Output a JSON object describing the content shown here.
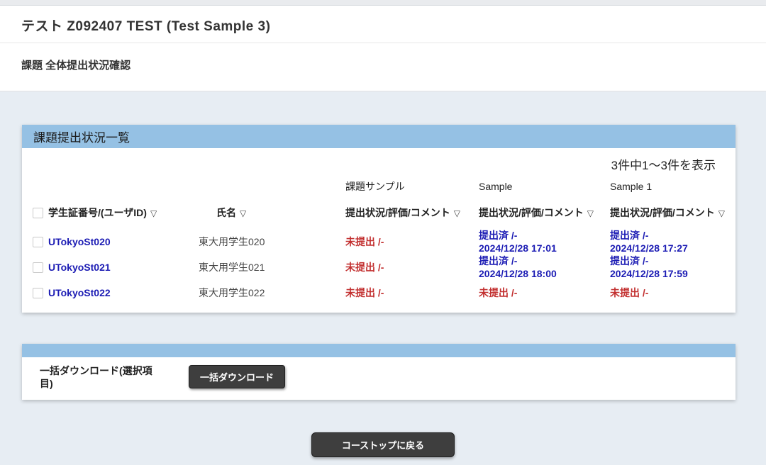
{
  "header": {
    "course_title": "テスト Z092407 TEST (Test Sample 3)",
    "page_title": "課題 全体提出状況確認"
  },
  "panel": {
    "title": "課題提出状況一覧",
    "count_display": "3件中1〜3件を表示",
    "sort_icon": "▽"
  },
  "table": {
    "assignment_names": [
      "課題サンプル",
      "Sample",
      "Sample 1"
    ],
    "columns": {
      "student_id": "学生証番号/(ユーザID)",
      "name": "氏名",
      "status": "提出状況/評価/コメント"
    },
    "rows": [
      {
        "student_id": "UTokyoSt020",
        "name": "東大用学生020",
        "statuses": [
          {
            "state": "未提出 /-",
            "date": ""
          },
          {
            "state": "提出済 /-",
            "date": "2024/12/28 17:01"
          },
          {
            "state": "提出済 /-",
            "date": "2024/12/28 17:27"
          }
        ]
      },
      {
        "student_id": "UTokyoSt021",
        "name": "東大用学生021",
        "statuses": [
          {
            "state": "未提出 /-",
            "date": ""
          },
          {
            "state": "提出済 /-",
            "date": "2024/12/28 18:00"
          },
          {
            "state": "提出済 /-",
            "date": "2024/12/28 17:59"
          }
        ]
      },
      {
        "student_id": "UTokyoSt022",
        "name": "東大用学生022",
        "statuses": [
          {
            "state": "未提出 /-",
            "date": ""
          },
          {
            "state": "未提出 /-",
            "date": ""
          },
          {
            "state": "未提出 /-",
            "date": ""
          }
        ]
      }
    ]
  },
  "download_section": {
    "label": "一括ダウンロード(選択項目)",
    "button_label": "一括ダウンロード"
  },
  "footer": {
    "back_button_label": "コーストップに戻る"
  },
  "colors": {
    "page_bg": "#e7edf3",
    "panel_header_bg": "#95c1e4",
    "link_blue": "#1c1cb4",
    "submitted_blue": "#1c1cb4",
    "not_submitted_red": "#c22f2f",
    "button_dark": "#3e3e3e"
  }
}
